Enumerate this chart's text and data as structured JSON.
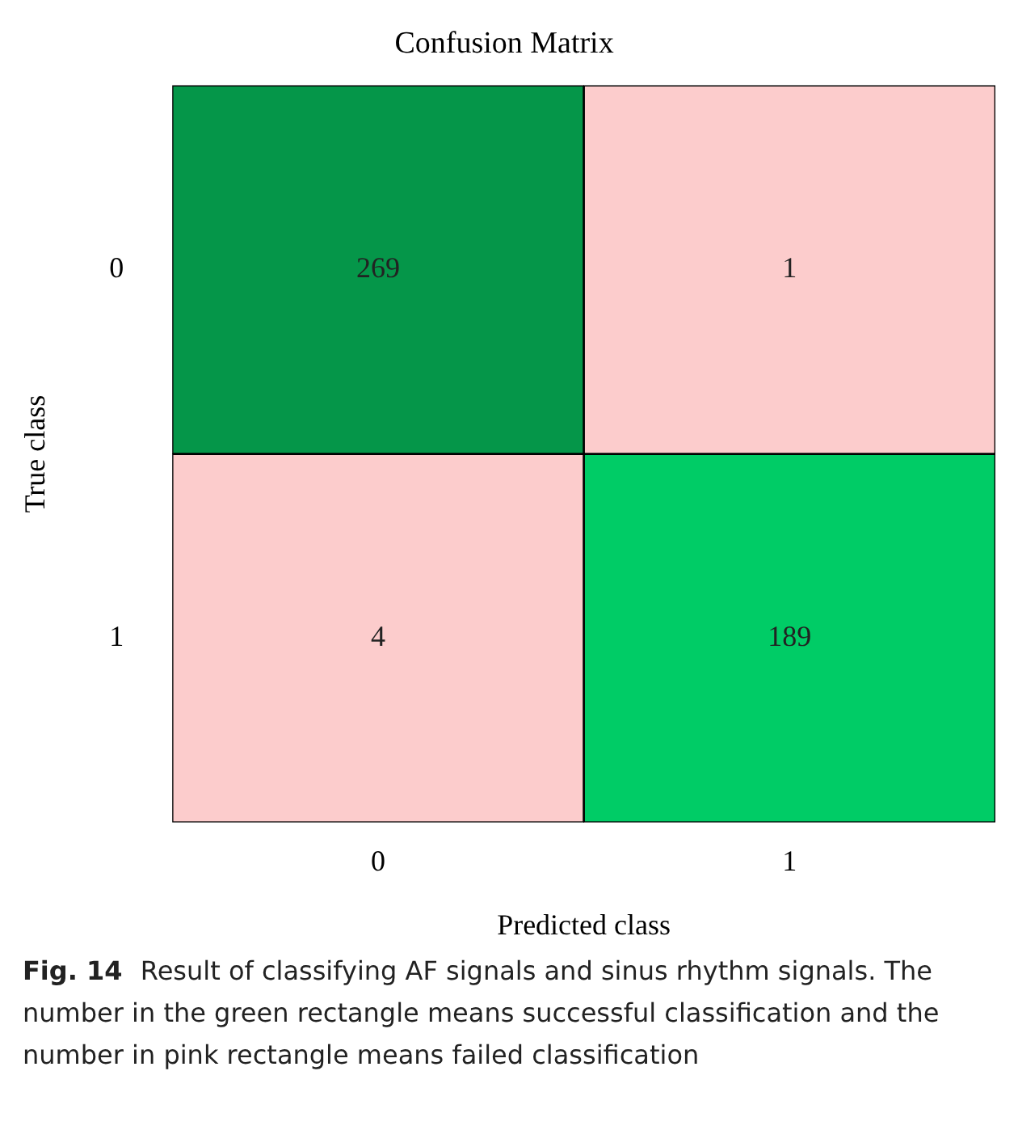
{
  "chart_data": {
    "type": "heatmap",
    "title": "Confusion Matrix",
    "xlabel": "Predicted class",
    "ylabel": "True class",
    "categories": [
      "0",
      "1"
    ],
    "y_categories": [
      "0",
      "1"
    ],
    "cells": [
      [
        269,
        1
      ],
      [
        4,
        189
      ]
    ],
    "colors": [
      [
        "#059649",
        "#fccccc"
      ],
      [
        "#fccccc",
        "#00cc66"
      ]
    ],
    "data_labels": true,
    "grid": false,
    "legend": false,
    "annotations": [
      "Fig. 14",
      "Result of classifying AF signals and sinus rhythm signals. The number in the green rectangle means successful classification and the number in pink rectangle means failed classification"
    ]
  }
}
